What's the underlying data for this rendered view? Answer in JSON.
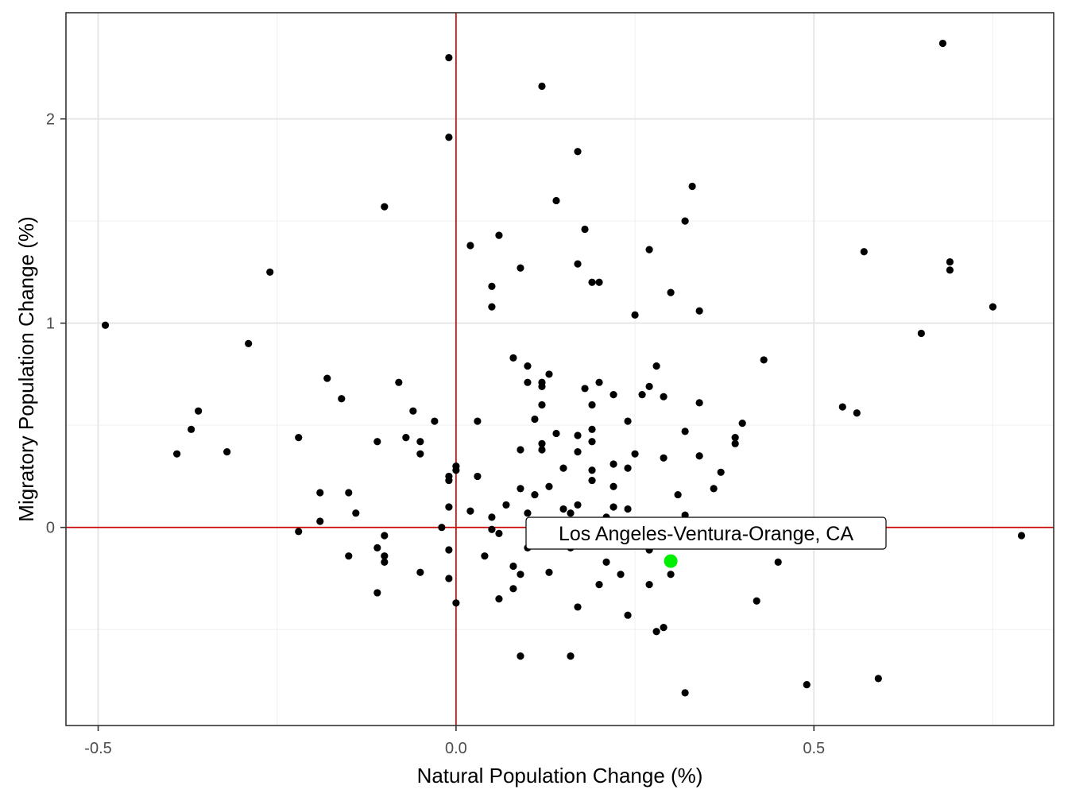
{
  "chart_data": {
    "type": "scatter",
    "title": "",
    "xlabel": "Natural Population Change (%)",
    "ylabel": "Migratory Population Change (%)",
    "xlim": [
      -0.545,
      0.835
    ],
    "ylim": [
      -0.97,
      2.52
    ],
    "x_ticks": [
      {
        "value": -0.5,
        "label": "-0.5"
      },
      {
        "value": 0.0,
        "label": "0.0"
      },
      {
        "value": 0.5,
        "label": "0.5"
      }
    ],
    "y_ticks": [
      {
        "value": 0,
        "label": "0"
      },
      {
        "value": 1,
        "label": "1"
      },
      {
        "value": 2,
        "label": "2"
      }
    ],
    "x_minor_gridlines": [
      -0.25,
      0.25,
      0.75
    ],
    "y_minor_gridlines": [
      -0.5,
      0.5,
      1.5
    ],
    "grid": true,
    "reference_lines": {
      "x": 0,
      "y": 0,
      "color": "#cc0000"
    },
    "point_color": "#000000",
    "points": [
      [
        0.68,
        2.37
      ],
      [
        -0.01,
        2.3
      ],
      [
        0.12,
        2.16
      ],
      [
        -0.01,
        1.91
      ],
      [
        0.17,
        1.84
      ],
      [
        0.33,
        1.67
      ],
      [
        0.14,
        1.6
      ],
      [
        -0.1,
        1.57
      ],
      [
        0.32,
        1.5
      ],
      [
        0.18,
        1.46
      ],
      [
        0.06,
        1.43
      ],
      [
        0.02,
        1.38
      ],
      [
        0.27,
        1.36
      ],
      [
        0.57,
        1.35
      ],
      [
        0.69,
        1.3
      ],
      [
        0.17,
        1.29
      ],
      [
        0.09,
        1.27
      ],
      [
        0.69,
        1.26
      ],
      [
        -0.26,
        1.25
      ],
      [
        0.19,
        1.2
      ],
      [
        0.2,
        1.2
      ],
      [
        0.05,
        1.18
      ],
      [
        0.3,
        1.15
      ],
      [
        0.05,
        1.08
      ],
      [
        0.75,
        1.08
      ],
      [
        0.34,
        1.06
      ],
      [
        0.25,
        1.04
      ],
      [
        -0.49,
        0.99
      ],
      [
        0.65,
        0.95
      ],
      [
        -0.29,
        0.9
      ],
      [
        0.08,
        0.83
      ],
      [
        0.43,
        0.82
      ],
      [
        0.1,
        0.79
      ],
      [
        0.28,
        0.79
      ],
      [
        0.13,
        0.75
      ],
      [
        -0.18,
        0.73
      ],
      [
        0.1,
        0.71
      ],
      [
        -0.08,
        0.71
      ],
      [
        0.12,
        0.71
      ],
      [
        0.2,
        0.71
      ],
      [
        0.12,
        0.69
      ],
      [
        0.27,
        0.69
      ],
      [
        0.18,
        0.68
      ],
      [
        0.22,
        0.65
      ],
      [
        0.26,
        0.65
      ],
      [
        -0.16,
        0.63
      ],
      [
        0.29,
        0.64
      ],
      [
        0.12,
        0.6
      ],
      [
        0.19,
        0.6
      ],
      [
        0.34,
        0.61
      ],
      [
        0.54,
        0.59
      ],
      [
        -0.36,
        0.57
      ],
      [
        -0.06,
        0.57
      ],
      [
        0.56,
        0.56
      ],
      [
        0.11,
        0.53
      ],
      [
        -0.03,
        0.52
      ],
      [
        0.03,
        0.52
      ],
      [
        0.24,
        0.52
      ],
      [
        0.4,
        0.51
      ],
      [
        -0.37,
        0.48
      ],
      [
        0.19,
        0.48
      ],
      [
        0.32,
        0.47
      ],
      [
        0.14,
        0.46
      ],
      [
        0.17,
        0.45
      ],
      [
        -0.22,
        0.44
      ],
      [
        -0.07,
        0.44
      ],
      [
        0.39,
        0.44
      ],
      [
        -0.11,
        0.42
      ],
      [
        -0.05,
        0.42
      ],
      [
        0.19,
        0.42
      ],
      [
        0.12,
        0.41
      ],
      [
        0.39,
        0.41
      ],
      [
        0.09,
        0.38
      ],
      [
        0.12,
        0.38
      ],
      [
        -0.32,
        0.37
      ],
      [
        0.17,
        0.37
      ],
      [
        -0.39,
        0.36
      ],
      [
        -0.05,
        0.36
      ],
      [
        0.25,
        0.36
      ],
      [
        0.34,
        0.35
      ],
      [
        0.29,
        0.34
      ],
      [
        0.0,
        0.3
      ],
      [
        0.22,
        0.31
      ],
      [
        0.15,
        0.29
      ],
      [
        0.24,
        0.29
      ],
      [
        0.0,
        0.28
      ],
      [
        0.19,
        0.28
      ],
      [
        0.37,
        0.27
      ],
      [
        0.03,
        0.25
      ],
      [
        -0.01,
        0.25
      ],
      [
        -0.01,
        0.23
      ],
      [
        0.19,
        0.23
      ],
      [
        0.13,
        0.2
      ],
      [
        0.22,
        0.2
      ],
      [
        0.09,
        0.19
      ],
      [
        0.36,
        0.19
      ],
      [
        -0.19,
        0.17
      ],
      [
        -0.15,
        0.17
      ],
      [
        0.11,
        0.16
      ],
      [
        0.31,
        0.16
      ],
      [
        0.07,
        0.11
      ],
      [
        0.17,
        0.11
      ],
      [
        -0.01,
        0.1
      ],
      [
        0.15,
        0.09
      ],
      [
        0.22,
        0.1
      ],
      [
        0.24,
        0.09
      ],
      [
        0.02,
        0.08
      ],
      [
        -0.14,
        0.07
      ],
      [
        0.1,
        0.07
      ],
      [
        0.16,
        0.07
      ],
      [
        0.05,
        0.05
      ],
      [
        0.21,
        0.05
      ],
      [
        0.32,
        0.06
      ],
      [
        -0.19,
        0.03
      ],
      [
        -0.02,
        0.0
      ],
      [
        0.05,
        -0.01
      ],
      [
        -0.22,
        -0.02
      ],
      [
        0.06,
        -0.03
      ],
      [
        -0.1,
        -0.04
      ],
      [
        0.79,
        -0.04
      ],
      [
        -0.11,
        -0.1
      ],
      [
        0.1,
        -0.1
      ],
      [
        -0.01,
        -0.11
      ],
      [
        0.16,
        -0.1
      ],
      [
        0.27,
        -0.11
      ],
      [
        -0.15,
        -0.14
      ],
      [
        -0.1,
        -0.14
      ],
      [
        0.04,
        -0.14
      ],
      [
        -0.1,
        -0.17
      ],
      [
        0.21,
        -0.17
      ],
      [
        0.45,
        -0.17
      ],
      [
        0.08,
        -0.19
      ],
      [
        -0.05,
        -0.22
      ],
      [
        0.09,
        -0.23
      ],
      [
        0.13,
        -0.22
      ],
      [
        0.23,
        -0.23
      ],
      [
        0.3,
        -0.23
      ],
      [
        -0.01,
        -0.25
      ],
      [
        0.2,
        -0.28
      ],
      [
        0.27,
        -0.28
      ],
      [
        0.08,
        -0.3
      ],
      [
        -0.11,
        -0.32
      ],
      [
        0.06,
        -0.35
      ],
      [
        0.0,
        -0.37
      ],
      [
        0.42,
        -0.36
      ],
      [
        0.17,
        -0.39
      ],
      [
        0.24,
        -0.43
      ],
      [
        0.29,
        -0.49
      ],
      [
        0.28,
        -0.51
      ],
      [
        0.09,
        -0.63
      ],
      [
        0.16,
        -0.63
      ],
      [
        0.59,
        -0.74
      ],
      [
        0.49,
        -0.77
      ],
      [
        0.32,
        -0.81
      ]
    ],
    "highlight": {
      "label": "Los Angeles-Ventura-Orange, CA",
      "x": 0.3,
      "y": -0.165,
      "color": "#00ee00"
    }
  }
}
